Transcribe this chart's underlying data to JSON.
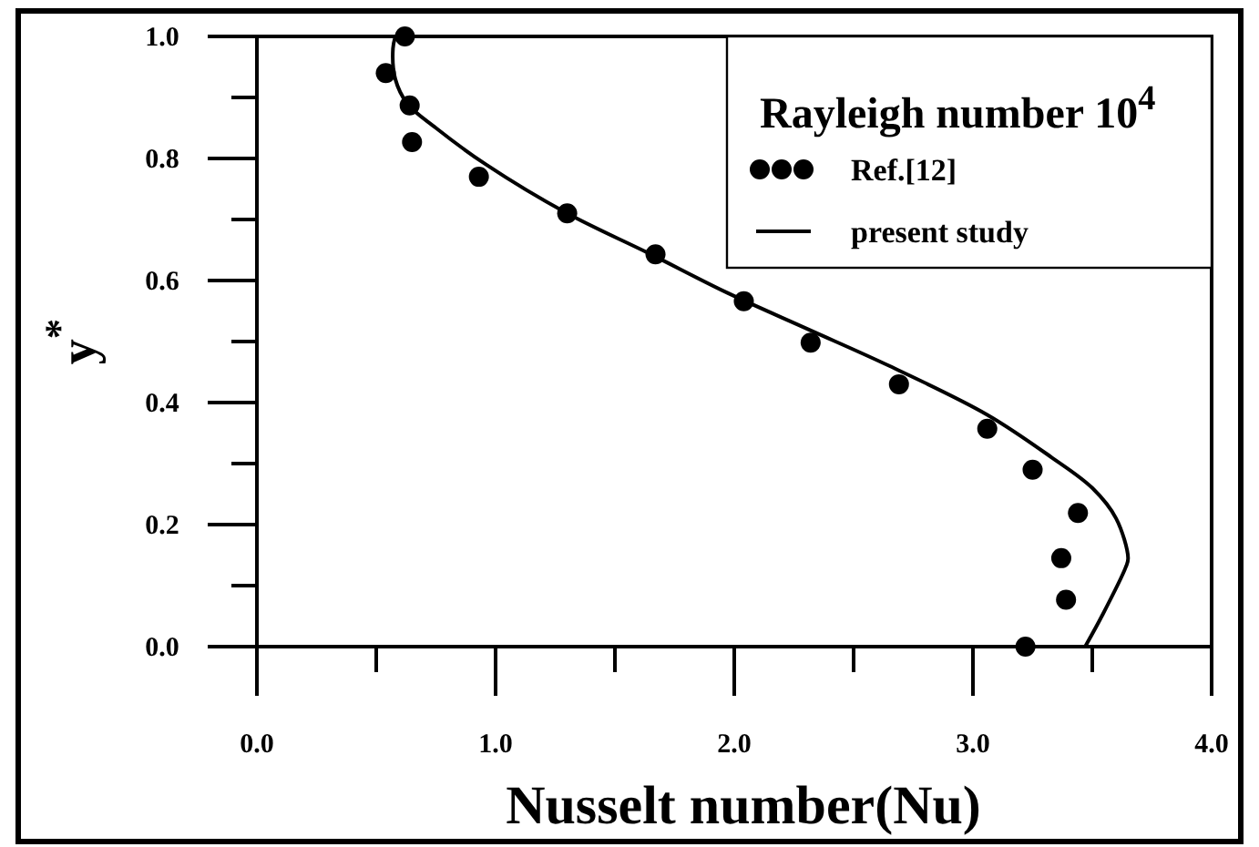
{
  "chart_data": {
    "type": "scatter",
    "xlabel": "Nusselt number(Nu)",
    "ylabel": "y$^{*}$",
    "legend_title": "Rayleigh number 10$^{4}$",
    "legend": "top right",
    "xlim": [
      0,
      4
    ],
    "ylim": [
      0,
      1
    ],
    "xticks": [
      {
        "value": 0,
        "label": "0.0"
      },
      {
        "value": 0.5,
        "label": null
      },
      {
        "value": 1,
        "label": "1.0"
      },
      {
        "value": 1.5,
        "label": null
      },
      {
        "value": 2,
        "label": "2.0"
      },
      {
        "value": 2.5,
        "label": null
      },
      {
        "value": 3,
        "label": "3.0"
      },
      {
        "value": 3.5,
        "label": null
      },
      {
        "value": 4,
        "label": "4.0"
      }
    ],
    "yticks": [
      {
        "value": 0,
        "label": "0.0"
      },
      {
        "value": 0.1,
        "label": null
      },
      {
        "value": 0.2,
        "label": "0.2"
      },
      {
        "value": 0.3,
        "label": null
      },
      {
        "value": 0.4,
        "label": "0.4"
      },
      {
        "value": 0.5,
        "label": null
      },
      {
        "value": 0.6,
        "label": "0.6"
      },
      {
        "value": 0.7,
        "label": null
      },
      {
        "value": 0.8,
        "label": "0.8"
      },
      {
        "value": 0.9,
        "label": null
      },
      {
        "value": 1,
        "label": "1.0"
      }
    ],
    "series": [
      {
        "name": "Ref.[12]",
        "marker": "circle",
        "color": "#000000",
        "x": [
          0.62,
          0.54,
          0.64,
          0.65,
          0.93,
          1.3,
          1.67,
          2.04,
          2.32,
          2.69,
          3.06,
          3.25,
          3.44,
          3.37,
          3.39,
          3.22
        ],
        "values": [
          1.0,
          0.94,
          0.887,
          0.827,
          0.77,
          0.71,
          0.643,
          0.566,
          0.498,
          0.43,
          0.357,
          0.29,
          0.219,
          0.145,
          0.077,
          0.0
        ]
      },
      {
        "name": "present study",
        "type": "line",
        "marker": "none",
        "line_style": "solid",
        "color": "#000000",
        "x": [
          3.47,
          3.54,
          3.64,
          3.65,
          3.6,
          3.5,
          3.33,
          3.06,
          2.65,
          2.31,
          1.97,
          1.64,
          1.3,
          0.96,
          0.75,
          0.63,
          0.58,
          0.57,
          0.58
        ],
        "values": [
          0,
          0.05,
          0.13,
          0.145,
          0.21,
          0.26,
          0.31,
          0.38,
          0.46,
          0.52,
          0.58,
          0.645,
          0.71,
          0.79,
          0.85,
          0.89,
          0.93,
          0.98,
          1.0
        ]
      }
    ]
  }
}
